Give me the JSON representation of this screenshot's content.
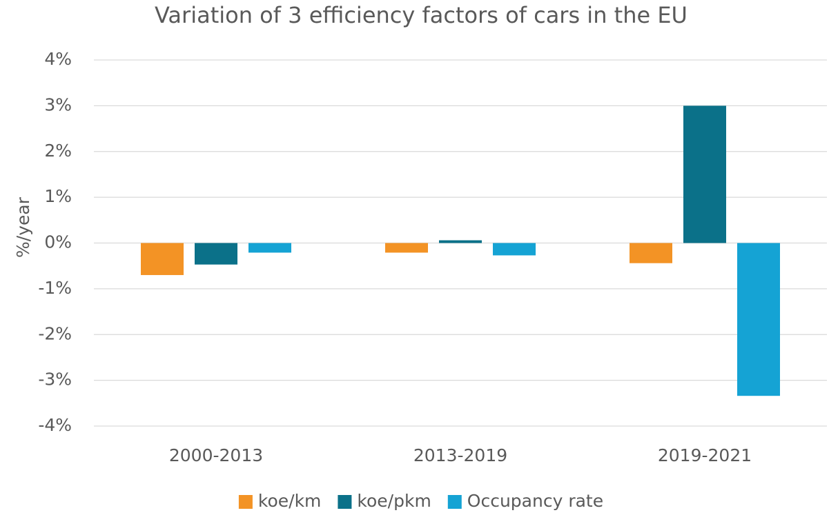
{
  "chart_data": {
    "type": "bar",
    "title": "Variation of 3 efficiency factors of cars in the EU",
    "y_label": "%/year",
    "categories": [
      "2000-2013",
      "2013-2019",
      "2019-2021"
    ],
    "series": [
      {
        "name": "koe/km",
        "color": "#f39325",
        "values": [
          -0.7,
          -0.21,
          -0.44
        ]
      },
      {
        "name": "koe/pkm",
        "color": "#0b7189",
        "values": [
          -0.47,
          0.06,
          3.0
        ]
      },
      {
        "name": "Occupancy rate",
        "color": "#15a3d4",
        "values": [
          -0.21,
          -0.27,
          -3.34
        ]
      }
    ],
    "ylim": [
      -4,
      4
    ],
    "yticks": [
      {
        "value": -4,
        "label": "-4%"
      },
      {
        "value": -3,
        "label": "-3%"
      },
      {
        "value": -2,
        "label": "-2%"
      },
      {
        "value": -1,
        "label": "-1%"
      },
      {
        "value": 0,
        "label": "0%"
      },
      {
        "value": 1,
        "label": "1%"
      },
      {
        "value": 2,
        "label": "2%"
      },
      {
        "value": 3,
        "label": "3%"
      },
      {
        "value": 4,
        "label": "4%"
      }
    ],
    "grid": true,
    "legend": "bottom"
  }
}
